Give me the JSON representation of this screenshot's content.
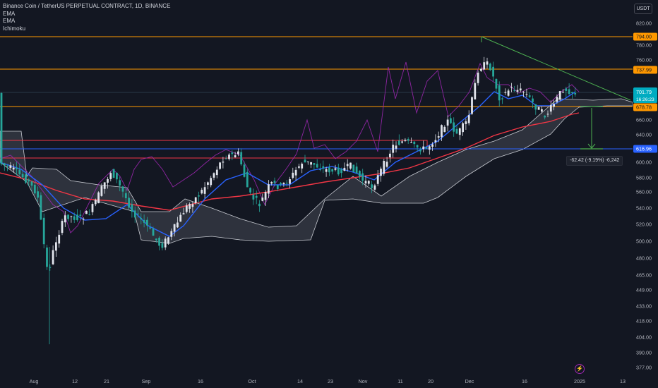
{
  "legend": {
    "title": "Binance Coin / TetherUS PERPETUAL CONTRACT, 1D, BINANCE",
    "indicators": [
      "EMA",
      "EMA",
      "Ichimoku"
    ]
  },
  "currency_button": "USDT",
  "price_axis": {
    "ticks": [
      "820.00",
      "780.00",
      "760.00",
      "720.00",
      "660.00",
      "640.00",
      "620.00",
      "600.00",
      "580.00",
      "560.00",
      "540.00",
      "520.00",
      "500.00",
      "480.00",
      "465.00",
      "449.00",
      "433.00",
      "418.00",
      "404.00",
      "390.00",
      "377.00"
    ]
  },
  "time_axis": {
    "ticks": [
      "Aug",
      "12",
      "21",
      "Sep",
      "16",
      "Oct",
      "14",
      "23",
      "Nov",
      "11",
      "20",
      "Dec",
      "16",
      "2025",
      "13"
    ]
  },
  "price_tags": {
    "level_794": "794.00",
    "level_737": "737.99",
    "current_price": "701.79",
    "countdown": "16:26:23",
    "level_678": "678.78",
    "level_616": "616.96"
  },
  "measure_label": "-62.42 (-9.19%) -6,242",
  "colors": {
    "background": "#131722",
    "up_candle": "#e0e3eb",
    "down_candle": "#26a69a",
    "ema_fast": "#2962ff",
    "ema_slow": "#f23645",
    "rsi_line": "#9c27b0",
    "horizontal_orange": "#ff9800",
    "horizontal_red": "#f23645",
    "horizontal_blue": "#2962ff",
    "trendline": "#4caf50",
    "current_tag": "#00acc1"
  },
  "icons": {
    "event_marker": "lightning-icon"
  }
}
